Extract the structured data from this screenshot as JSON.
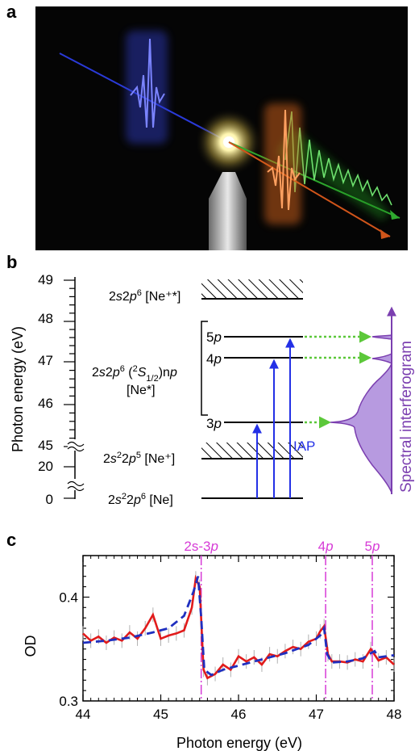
{
  "figure": {
    "panel_labels": {
      "a": "a",
      "b": "b",
      "c": "c"
    }
  },
  "panel_b": {
    "y_axis_label": "Photon energy (eV)",
    "y_ticks_upper": [
      "49",
      "48",
      "47",
      "46",
      "45"
    ],
    "y_ticks_lower": [
      "20",
      "0"
    ],
    "states": {
      "ne_plus_plus": {
        "config_html": "2s2p⁶",
        "tag": "[Ne⁺*]"
      },
      "ne_star": {
        "line1": "2s2p⁶ (²S",
        "sub": "1/2",
        "line1b": ")np",
        "tag": "[Ne*]"
      },
      "ne_plus": {
        "config": "2s²2p⁵",
        "tag": "[Ne⁺]"
      },
      "ne": {
        "config": "2s²2p⁶",
        "tag": "[Ne]"
      }
    },
    "level_labels": {
      "p5": "5p",
      "p4": "4p",
      "p3": "3p"
    },
    "iap_label": "IAP",
    "spectral_label": "Spectral interferogram",
    "colors": {
      "blue": "#2330e6",
      "green": "#5cc83a",
      "purple": "#7b3fb0",
      "purple_fill": "#b79ae0"
    }
  },
  "chart_data": {
    "type": "line",
    "title": "",
    "xlabel": "Photon energy (eV)",
    "ylabel": "OD",
    "xlim": [
      44,
      48
    ],
    "ylim": [
      0.3,
      0.44
    ],
    "x_ticks": [
      "44",
      "45",
      "46",
      "47",
      "48"
    ],
    "y_ticks": [
      "0.3",
      "0.4"
    ],
    "markers": [
      {
        "label": "2s-3p",
        "x": 45.52
      },
      {
        "label": "4p",
        "x": 47.12
      },
      {
        "label": "5p",
        "x": 47.72
      }
    ],
    "series": [
      {
        "style": "solid-red",
        "color": "#e11b1b",
        "x": [
          44.0,
          44.1,
          44.2,
          44.3,
          44.4,
          44.5,
          44.6,
          44.7,
          44.8,
          44.9,
          45.0,
          45.1,
          45.2,
          45.3,
          45.4,
          45.45,
          45.5,
          45.55,
          45.6,
          45.7,
          45.8,
          45.9,
          46.0,
          46.1,
          46.2,
          46.3,
          46.4,
          46.5,
          46.6,
          46.7,
          46.8,
          46.9,
          47.0,
          47.05,
          47.1,
          47.15,
          47.2,
          47.3,
          47.4,
          47.5,
          47.6,
          47.7,
          47.8,
          47.9,
          48.0
        ],
        "y": [
          0.365,
          0.358,
          0.362,
          0.356,
          0.361,
          0.358,
          0.366,
          0.36,
          0.37,
          0.383,
          0.36,
          0.363,
          0.365,
          0.368,
          0.39,
          0.418,
          0.41,
          0.33,
          0.322,
          0.326,
          0.335,
          0.33,
          0.343,
          0.338,
          0.342,
          0.335,
          0.345,
          0.343,
          0.348,
          0.352,
          0.35,
          0.357,
          0.36,
          0.367,
          0.372,
          0.345,
          0.338,
          0.338,
          0.337,
          0.34,
          0.338,
          0.35,
          0.339,
          0.342,
          0.335
        ]
      },
      {
        "style": "dashed-blue",
        "color": "#1f2fbf",
        "x": [
          44.0,
          44.3,
          44.6,
          44.9,
          45.1,
          45.3,
          45.42,
          45.48,
          45.52,
          45.56,
          45.65,
          45.8,
          46.0,
          46.3,
          46.6,
          46.9,
          47.05,
          47.1,
          47.14,
          47.2,
          47.4,
          47.6,
          47.7,
          47.75,
          47.8,
          48.0
        ],
        "y": [
          0.356,
          0.358,
          0.361,
          0.366,
          0.37,
          0.382,
          0.405,
          0.42,
          0.38,
          0.33,
          0.325,
          0.33,
          0.334,
          0.34,
          0.346,
          0.354,
          0.363,
          0.37,
          0.345,
          0.337,
          0.338,
          0.341,
          0.346,
          0.348,
          0.342,
          0.344
        ]
      }
    ]
  }
}
